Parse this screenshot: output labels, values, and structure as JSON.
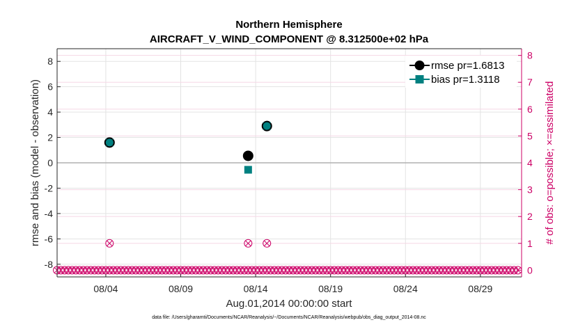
{
  "chart_data": {
    "type": "scatter",
    "title": "Northern Hemisphere",
    "subtitle": "AIRCRAFT_V_WIND_COMPONENT @ 8.312500e+02 hPa",
    "xlabel": "Aug.01,2014 00:00:00 start",
    "ylabel_left": "rmse and bias (model - observation)",
    "ylabel_right": "# of obs: o=possible; ×=assimilated",
    "footnote": "data file: /Users/gharamti/Documents/NCAR/Reanalysis/~/Documents/NCAR/Reanalysis/webpub/obs_diag_output_2014-08.nc",
    "x_range": [
      0,
      31
    ],
    "xticks": [
      3.25,
      8.25,
      13.25,
      18.25,
      23.25,
      28.25
    ],
    "xtick_labels": [
      "08/04",
      "08/09",
      "08/14",
      "08/19",
      "08/24",
      "08/29"
    ],
    "ylim_left": [
      -9,
      9
    ],
    "yticks_left": [
      -8,
      -6,
      -4,
      -2,
      0,
      2,
      4,
      6,
      8
    ],
    "ylim_right": [
      -0.25,
      8.25
    ],
    "yticks_right": [
      0,
      1,
      2,
      3,
      4,
      5,
      6,
      7,
      8
    ],
    "legend_position": "top-right",
    "series": [
      {
        "name": "rmse",
        "legend_label": "rmse pr=1.6813",
        "color": "#000000",
        "marker": "circle",
        "x": [
          3.5,
          12.75,
          14.0
        ],
        "y": [
          1.6,
          0.55,
          2.9
        ]
      },
      {
        "name": "bias",
        "legend_label": "bias pr=1.3118",
        "color": "#008080",
        "marker": "square",
        "x": [
          3.5,
          12.75,
          14.0
        ],
        "y": [
          1.6,
          -0.55,
          2.9
        ]
      }
    ],
    "obs_counts": {
      "color": "#cc0066",
      "x_start": 0,
      "x_step": 0.25,
      "n_bins": 124,
      "nonzero": [
        {
          "x": 3.5,
          "count": 1
        },
        {
          "x": 12.75,
          "count": 1
        },
        {
          "x": 14.0,
          "count": 1
        }
      ]
    }
  }
}
